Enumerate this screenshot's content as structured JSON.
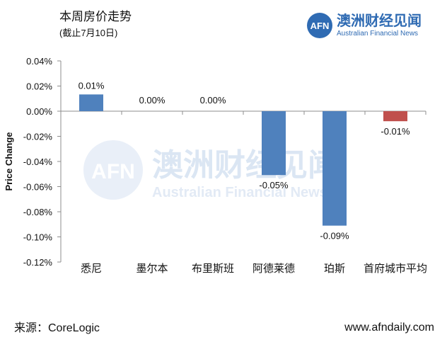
{
  "header": {
    "title": "本周房价走势",
    "subtitle": "(截止7月10日)"
  },
  "brand": {
    "logo_text": "AFN",
    "name_cn": "澳洲财经见闻",
    "name_en": "Australian Financial News",
    "color": "#2f6bb3"
  },
  "watermark": {
    "cn": "澳洲财经见闻",
    "en": "Australian Financial News",
    "logo_text": "AFN"
  },
  "footer": {
    "source": "来源：CoreLogic",
    "website": "www.afndaily.com"
  },
  "chart_data": {
    "type": "bar",
    "title": "本周房价走势",
    "ylabel": "Price Change",
    "xlabel": "",
    "categories": [
      "悉尼",
      "墨尔本",
      "布里斯班",
      "阿德莱德",
      "珀斯",
      "首府城市平均"
    ],
    "values": [
      0.0001,
      0.0,
      0.0,
      -0.0005,
      -0.0009,
      -0.0001
    ],
    "bar_heights": [
      0.0001332,
      0.0,
      0.0,
      -0.0005084,
      -0.0009106,
      -7.99e-05
    ],
    "data_labels": [
      "0.01%",
      "0.00%",
      "0.00%",
      "-0.05%",
      "-0.09%",
      "-0.01%"
    ],
    "ylim": [
      -0.0012,
      0.0004
    ],
    "yticks": [
      "0.04%",
      "0.02%",
      "0.00%",
      "-0.02%",
      "-0.04%",
      "-0.06%",
      "-0.08%",
      "-0.10%",
      "-0.12%"
    ],
    "ytick_values": [
      0.0004,
      0.0002,
      0.0,
      -0.0002,
      -0.0004,
      -0.0006,
      -0.0008,
      -0.001,
      -0.0012
    ],
    "colors": {
      "positive": "#4f81bd",
      "negative": "#c0504d"
    },
    "grid": false,
    "legend": "none"
  }
}
